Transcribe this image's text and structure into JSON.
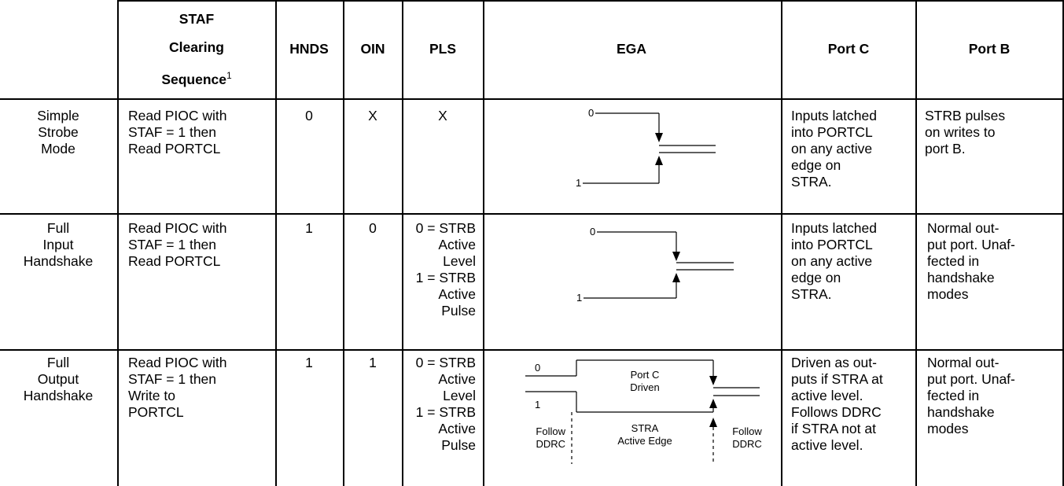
{
  "headers": {
    "staf_line1": "STAF",
    "staf_line2": "Clearing",
    "staf_line3": "Sequence",
    "staf_sup": "1",
    "hnds": "HNDS",
    "oin": "OIN",
    "pls": "PLS",
    "ega": "EGA",
    "port_c": "Port C",
    "port_b": "Port B"
  },
  "rows": [
    {
      "mode": [
        "Simple",
        "Strobe",
        "Mode"
      ],
      "staf": [
        "Read PIOC with",
        "STAF = 1 then",
        "Read PORTCL"
      ],
      "hnds": "0",
      "oin": "X",
      "pls": [
        "X"
      ],
      "ega": {
        "label0": "0",
        "label1": "1"
      },
      "port_c": [
        "Inputs latched",
        "into PORTCL",
        "on any active",
        "edge on",
        "STRA."
      ],
      "port_b": [
        "STRB pulses",
        "on writes to",
        "port B."
      ]
    },
    {
      "mode": [
        "Full",
        "Input",
        "Handshake"
      ],
      "staf": [
        "Read PIOC with",
        "STAF = 1 then",
        "Read PORTCL"
      ],
      "hnds": "1",
      "oin": "0",
      "pls": [
        "0 = STRB",
        "Active",
        "Level",
        "1 = STRB",
        "Active",
        "Pulse"
      ],
      "ega": {
        "label0": "0",
        "label1": "1"
      },
      "port_c": [
        "Inputs latched",
        "into PORTCL",
        "on any active",
        "edge on",
        "STRA."
      ],
      "port_b": [
        "Normal out-",
        "put port. Unaf-",
        "fected in",
        "handshake",
        "modes"
      ]
    },
    {
      "mode": [
        "Full",
        "Output",
        "Handshake"
      ],
      "staf": [
        "Read PIOC with",
        "STAF = 1 then",
        "Write to",
        "PORTCL"
      ],
      "hnds": "1",
      "oin": "1",
      "pls": [
        "0 = STRB",
        "Active",
        "Level",
        "1 = STRB",
        "Active",
        "Pulse"
      ],
      "ega": {
        "label0": "0",
        "label1": "1",
        "port_c_driven": [
          "Port C",
          "Driven"
        ],
        "stra_edge": [
          "STRA",
          "Active Edge"
        ],
        "follow_left": [
          "Follow",
          "DDRC"
        ],
        "follow_right": [
          "Follow",
          "DDRC"
        ]
      },
      "port_c": [
        "Driven as out-",
        "puts if STRA at",
        "active level.",
        "Follows DDRC",
        "if STRA not at",
        "active level."
      ],
      "port_b": [
        "Normal out-",
        "put port. Unaf-",
        "fected in",
        "handshake",
        "modes"
      ]
    }
  ]
}
